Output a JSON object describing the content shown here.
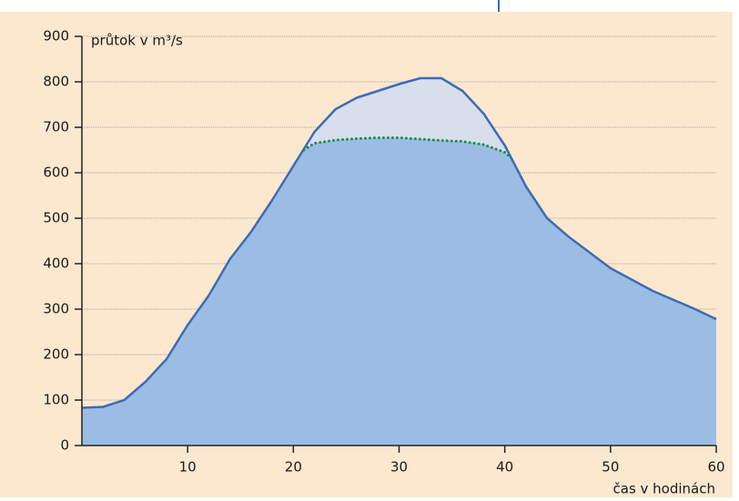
{
  "chart_data": {
    "type": "area",
    "y_label": "průtok v m³/s",
    "x_label": "čas v hodinách",
    "xlim": [
      0,
      60
    ],
    "xticks": [
      10,
      20,
      30,
      40,
      50,
      60
    ],
    "ylim": [
      0,
      900
    ],
    "yticks": [
      0,
      100,
      200,
      300,
      400,
      500,
      600,
      700,
      800,
      900
    ],
    "grid": true,
    "series": [
      {
        "color": "#3d6db4",
        "fill": "#9bbde4",
        "x": [
          0,
          2,
          4,
          6,
          8,
          10,
          12,
          14,
          16,
          18,
          20,
          22,
          24,
          26,
          28,
          30,
          32,
          34,
          36,
          38,
          40,
          42,
          44,
          46,
          48,
          50,
          52,
          54,
          56,
          58,
          60
        ],
        "values": [
          83,
          85,
          100,
          140,
          190,
          265,
          330,
          410,
          470,
          540,
          615,
          690,
          740,
          765,
          780,
          795,
          808,
          808,
          780,
          730,
          660,
          570,
          500,
          460,
          425,
          390,
          365,
          340,
          320,
          300,
          278
        ]
      },
      {
        "color": "#1b8d4c",
        "fill": "#d8deec",
        "x": [
          21,
          22,
          24,
          26,
          28,
          30,
          32,
          34,
          36,
          38,
          40,
          40.5
        ],
        "values": [
          650,
          665,
          672,
          675,
          677,
          677,
          674,
          671,
          669,
          662,
          645,
          635
        ]
      }
    ]
  }
}
